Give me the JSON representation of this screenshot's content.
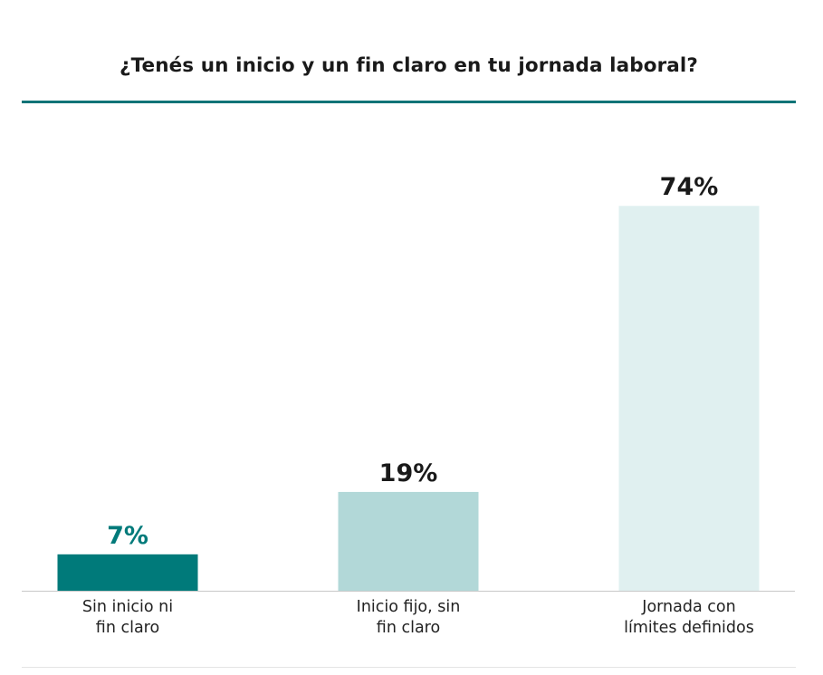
{
  "chart_data": {
    "type": "bar",
    "title": "¿Tenés un inicio y un fin claro en tu jornada laboral?",
    "categories": [
      [
        "Sin inicio ni",
        "fin claro"
      ],
      [
        "Inicio fijo, sin",
        "fin claro"
      ],
      [
        "Jornada con",
        "límites definidos"
      ]
    ],
    "values": [
      7,
      19,
      74
    ],
    "value_labels": [
      "7%",
      "19%",
      "74%"
    ],
    "unit": "%",
    "ylim": [
      0,
      80
    ],
    "xlabel": "",
    "ylabel": "",
    "grid": false,
    "colors": {
      "bars": [
        "#007a7a",
        "#b2d8d8",
        "#e0f0f0"
      ],
      "value_labels": [
        "#007a7a",
        "#1a1a1a",
        "#1a1a1a"
      ],
      "accent": "#0f7377",
      "axis": "#c8c8c8"
    }
  }
}
